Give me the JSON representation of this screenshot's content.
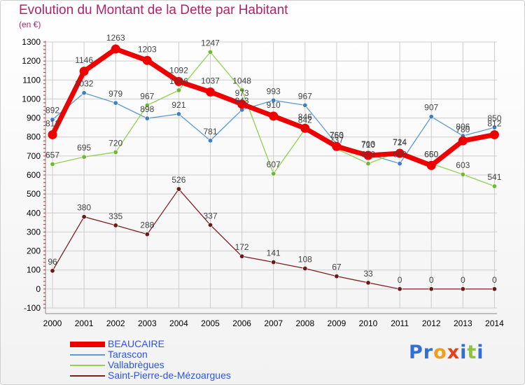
{
  "title": "Evolution du Montant de la Dette par Habitant",
  "unit": "(en €)",
  "brand": "Proxiti",
  "colors": {
    "title": "#b0246a",
    "legend_text": "#2b55e6",
    "grid": "#cccccc",
    "axis_text": "#000000",
    "label_text": "#444444"
  },
  "chart_data": {
    "type": "line",
    "x": [
      "2000",
      "2001",
      "2002",
      "2003",
      "2004",
      "2005",
      "2006",
      "2007",
      "2008",
      "2009",
      "2010",
      "2011",
      "2012",
      "2013",
      "2014"
    ],
    "ylim": [
      -100,
      1300
    ],
    "yticks": [
      -100,
      0,
      100,
      200,
      300,
      400,
      500,
      600,
      700,
      800,
      900,
      1000,
      1100,
      1200,
      1300
    ],
    "grid": true,
    "legend_position": "bottom-left",
    "series": [
      {
        "name": "Tarascon",
        "color": "#5b9bd5",
        "point_color": "#3c7fc4",
        "values": [
          892,
          1032,
          979,
          898,
          921,
          781,
          943,
          993,
          967,
          763,
          710,
          660,
          907,
          806,
          850
        ],
        "labels": [
          "892",
          "1032",
          "979",
          "898",
          "921",
          "781",
          "943",
          "993",
          "967",
          "763",
          "710",
          "660",
          "907",
          "806",
          "850"
        ]
      },
      {
        "name": "Vallabrègues",
        "color": "#92d050",
        "point_color": "#70b830",
        "values": [
          657,
          695,
          720,
          967,
          1046,
          1247,
          1048,
          607,
          842,
          737,
          660,
          724,
          660,
          603,
          541
        ],
        "labels": [
          "657",
          "695",
          "720",
          "967",
          "1046",
          "1247",
          "1048",
          "607",
          "842",
          "737",
          "660",
          "724",
          "660",
          "603",
          "541"
        ]
      },
      {
        "name": "Saint-Pierre-de-Mézoargues",
        "color": "#7f2020",
        "point_color": "#6b1a1a",
        "values": [
          96,
          380,
          335,
          288,
          526,
          337,
          172,
          141,
          108,
          67,
          33,
          0,
          0,
          0,
          0
        ],
        "labels": [
          "96",
          "380",
          "335",
          "288",
          "526",
          "337",
          "172",
          "141",
          "108",
          "67",
          "33",
          "0",
          "0",
          "0",
          "0"
        ]
      },
      {
        "name": "BEAUCAIRE",
        "color": "#ee0000",
        "point_color": "#ee0000",
        "values": [
          812,
          1146,
          1263,
          1203,
          1092,
          1037,
          973,
          910,
          846,
          750,
          703,
          714,
          650,
          780,
          812
        ],
        "labels": [
          "812",
          "1146",
          "1263",
          "1203",
          "1092",
          "1037",
          "973",
          "910",
          "846",
          "750",
          "703",
          "714",
          "650",
          "780",
          "812"
        ]
      }
    ],
    "legend_order": [
      "BEAUCAIRE",
      "Tarascon",
      "Vallabrègues",
      "Saint-Pierre-de-Mézoargues"
    ]
  }
}
